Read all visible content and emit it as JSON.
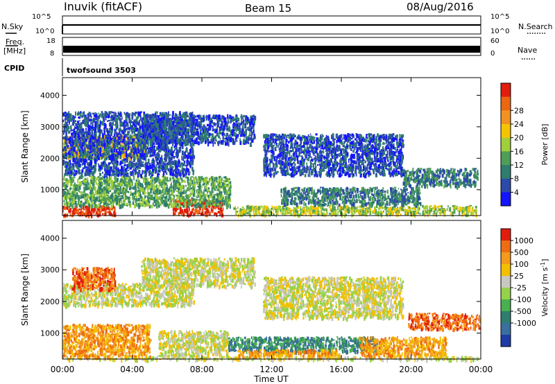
{
  "header": {
    "station": "Inuvik (fitACF)",
    "beam": "Beam 15",
    "date": "08/Aug/2016"
  },
  "strips": {
    "nsky_label": "N.Sky",
    "nsky_ticks": [
      "10^5",
      "10^0"
    ],
    "nsearch_label": "N.Search",
    "nsearch_ticks": [
      "10^5",
      "10^0"
    ],
    "freq_label": "Freq.",
    "freq_unit": "[MHz]",
    "freq_ticks": [
      "18",
      "8"
    ],
    "nave_label": "Nave",
    "nave_ticks": [
      "60",
      "0"
    ],
    "cpid_label": "CPID",
    "cpid_value": "twofsound 3503"
  },
  "chart_data": [
    {
      "type": "heatmap",
      "name": "power-panel",
      "xlabel": "Time UT",
      "ylabel": "Slant Range [km]",
      "x_range_hours": [
        0,
        24
      ],
      "ylim": [
        180,
        4560
      ],
      "yticks": [
        1000,
        2000,
        3000,
        4000
      ],
      "xticks": [
        "00:00",
        "04:00",
        "08:00",
        "12:00",
        "16:00",
        "20:00",
        "00:00"
      ],
      "colorbar": {
        "label": "Power [dB]",
        "ticks": [
          "4",
          "8",
          "12",
          "16",
          "20",
          "24",
          "28"
        ],
        "colors": [
          "#1414ff",
          "#2c4aa8",
          "#2f7d6f",
          "#4f9e57",
          "#9fcf3a",
          "#f5c400",
          "#f29222",
          "#ec6712",
          "#e11d0c"
        ]
      },
      "regions": [
        {
          "t0": 0.0,
          "t1": 3.0,
          "r0": 220,
          "r1": 520,
          "level": 8
        },
        {
          "t0": 6.3,
          "t1": 9.2,
          "r0": 230,
          "r1": 720,
          "level": 8
        },
        {
          "t0": 0.0,
          "t1": 9.6,
          "r0": 520,
          "r1": 1450,
          "level": 3
        },
        {
          "t0": 0.0,
          "t1": 4.8,
          "r0": 2050,
          "r1": 2750,
          "level": 5
        },
        {
          "t0": 0.0,
          "t1": 7.5,
          "r0": 1500,
          "r1": 3500,
          "level": 1
        },
        {
          "t0": 9.8,
          "t1": 23.7,
          "r0": 240,
          "r1": 520,
          "level": 4
        },
        {
          "t0": 12.5,
          "t1": 20.5,
          "r0": 550,
          "r1": 1100,
          "level": 2
        },
        {
          "t0": 19.5,
          "t1": 23.8,
          "r0": 1150,
          "r1": 1700,
          "level": 2
        },
        {
          "t0": 11.5,
          "t1": 19.5,
          "r0": 1500,
          "r1": 2800,
          "level": 1
        },
        {
          "t0": 4.5,
          "t1": 11.0,
          "r0": 2500,
          "r1": 3400,
          "level": 1
        }
      ]
    },
    {
      "type": "heatmap",
      "name": "velocity-panel",
      "xlabel": "Time UT",
      "ylabel": "Slant Range [km]",
      "x_range_hours": [
        0,
        24
      ],
      "ylim": [
        180,
        4560
      ],
      "yticks": [
        1000,
        2000,
        3000,
        4000
      ],
      "xticks": [
        "00:00",
        "04:00",
        "08:00",
        "12:00",
        "16:00",
        "20:00",
        "00:00"
      ],
      "colorbar": {
        "label": "Velocity [m s",
        "label_sup": "-1",
        "label_tail": "]",
        "ticks": [
          "1000",
          "500",
          "100",
          "25",
          "-25",
          "-100",
          "-500",
          "-1000"
        ],
        "colors": [
          "#1e3ca8",
          "#3a6fa0",
          "#2f7d6f",
          "#48b050",
          "#95d24a",
          "#c8c8c0",
          "#f2c000",
          "#f59a1d",
          "#ee6d12",
          "#e11d0c"
        ]
      },
      "regions": [
        {
          "t0": 0.0,
          "t1": 24.0,
          "r0": 200,
          "r1": 280,
          "level": 5
        },
        {
          "t0": 0.0,
          "t1": 5.0,
          "r0": 280,
          "r1": 1300,
          "level": 7
        },
        {
          "t0": 5.5,
          "t1": 9.5,
          "r0": 300,
          "r1": 1100,
          "level": 5
        },
        {
          "t0": 0.0,
          "t1": 7.5,
          "r0": 1900,
          "r1": 2600,
          "level": 5
        },
        {
          "t0": 0.5,
          "t1": 3.0,
          "r0": 2400,
          "r1": 3100,
          "level": 8
        },
        {
          "t0": 9.5,
          "t1": 18.0,
          "r0": 450,
          "r1": 900,
          "level": 2
        },
        {
          "t0": 10.0,
          "t1": 16.0,
          "r0": 280,
          "r1": 500,
          "level": 7
        },
        {
          "t0": 17.0,
          "t1": 22.0,
          "r0": 300,
          "r1": 900,
          "level": 7
        },
        {
          "t0": 19.8,
          "t1": 23.9,
          "r0": 1150,
          "r1": 1650,
          "level": 8
        },
        {
          "t0": 11.5,
          "t1": 19.5,
          "r0": 1500,
          "r1": 2800,
          "level": 5
        },
        {
          "t0": 4.5,
          "t1": 11.0,
          "r0": 2500,
          "r1": 3400,
          "level": 5
        }
      ]
    }
  ]
}
